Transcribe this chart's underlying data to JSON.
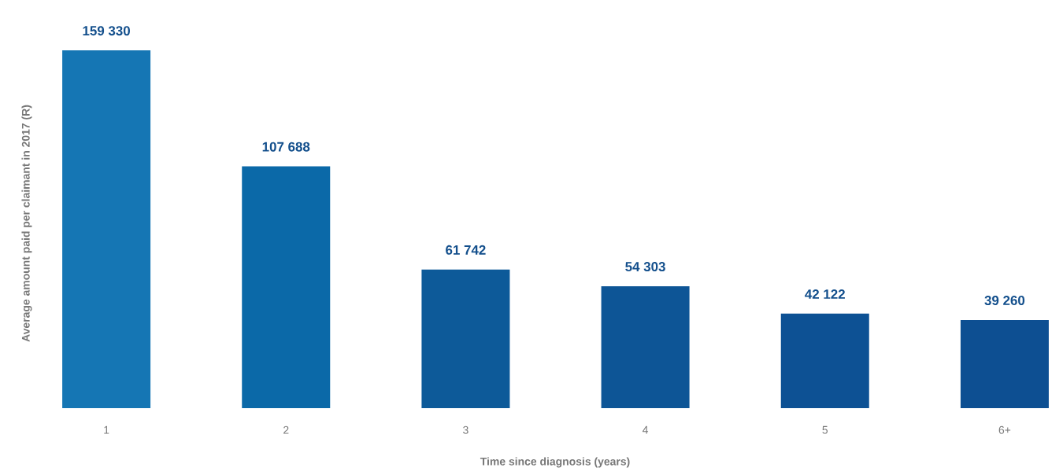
{
  "chart_data": {
    "type": "bar",
    "xlabel": "Time since diagnosis (years)",
    "ylabel": "Average amount paid per claimant in 2017 (R)",
    "categories": [
      "1",
      "2",
      "3",
      "4",
      "5",
      "6+"
    ],
    "values": [
      159330,
      107688,
      61742,
      54303,
      42122,
      39260
    ],
    "value_labels": [
      "159 330",
      "107 688",
      "61 742",
      "54 303",
      "42 122",
      "39 260"
    ],
    "colors": [
      "#1576b4",
      "#0b69a8",
      "#0d5a99",
      "#0d5596",
      "#0d5194",
      "#0d4f92"
    ]
  }
}
